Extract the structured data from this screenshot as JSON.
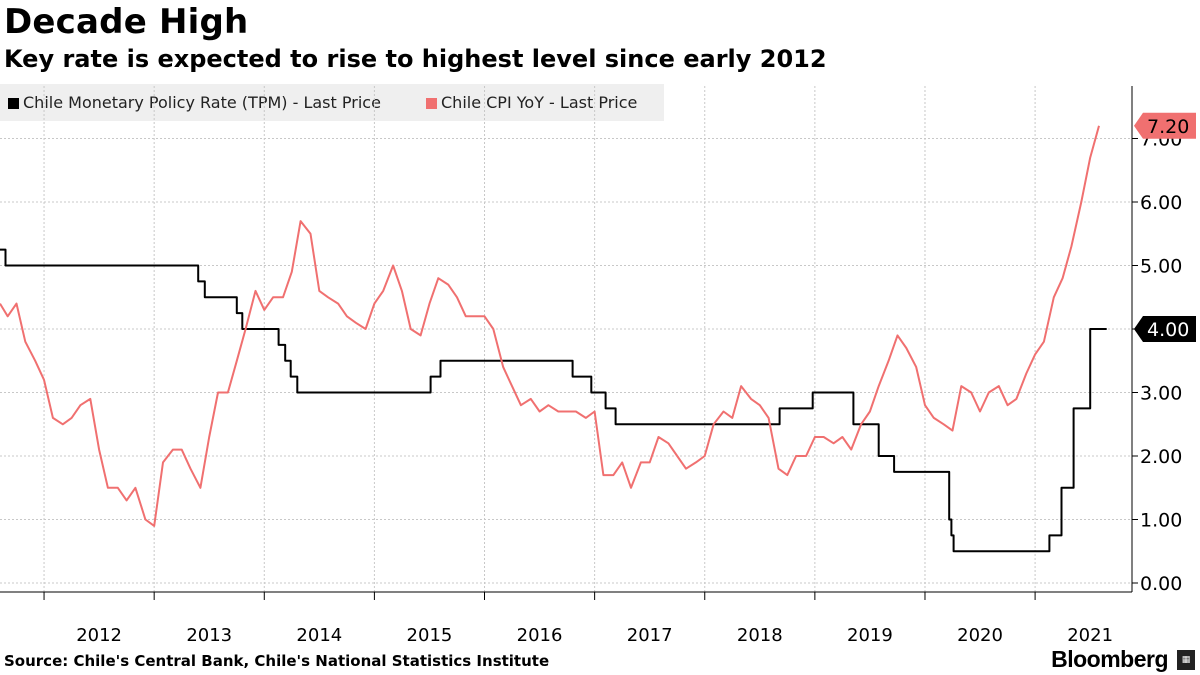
{
  "title": "Decade High",
  "subtitle": "Key rate is expected to rise to highest level since early 2012",
  "source": "Source: Chile's Central Bank, Chile's National Statistics Institute",
  "brand": "Bloomberg",
  "colors": {
    "tpm": "#000000",
    "cpi": "#f07070",
    "grid": "#c8c8c8",
    "legend_bg": "#efefef"
  },
  "chart_data": {
    "type": "line",
    "title": "Decade High",
    "subtitle": "Key rate is expected to rise to highest level since early 2012",
    "xlabel": "",
    "ylabel": "",
    "xlim": [
      2011.6,
      2021.88
    ],
    "ylim": [
      -0.1,
      8.0
    ],
    "y_ticks": [
      0,
      1,
      2,
      3,
      4,
      5,
      6,
      7
    ],
    "y_tick_labels": [
      "0.00",
      "1.00",
      "2.00",
      "3.00",
      "4.00",
      "5.00",
      "6.00",
      "7.00"
    ],
    "x_tick_labels": [
      "2012",
      "2013",
      "2014",
      "2015",
      "2016",
      "2017",
      "2018",
      "2019",
      "2020",
      "2021"
    ],
    "x_tick_positions": [
      2012.0,
      2013.0,
      2014.0,
      2015.0,
      2016.0,
      2017.0,
      2018.0,
      2019.0,
      2020.0,
      2021.0
    ],
    "grid": true,
    "legend_position": "top-left",
    "series": [
      {
        "name": "Chile Monetary Policy Rate (TPM) - Last Price",
        "step": true,
        "last_value_label": "4.00",
        "x": [
          2011.6,
          2011.65,
          2013.4,
          2013.46,
          2013.52,
          2013.75,
          2013.8,
          2014.13,
          2014.19,
          2014.24,
          2014.3,
          2015.3,
          2015.51,
          2015.6,
          2016.8,
          2016.97,
          2017.1,
          2017.14,
          2017.19,
          2018.4,
          2018.68,
          2018.98,
          2019.35,
          2019.58,
          2019.72,
          2020.22,
          2020.24,
          2020.26,
          2021.13,
          2021.24,
          2021.35,
          2021.5,
          2021.62,
          2021.65
        ],
        "values": [
          5.25,
          5.0,
          4.75,
          4.5,
          4.5,
          4.25,
          4.0,
          3.75,
          3.5,
          3.25,
          3.0,
          3.0,
          3.25,
          3.5,
          3.25,
          3.0,
          2.75,
          2.75,
          2.5,
          2.5,
          2.75,
          3.0,
          2.5,
          2.0,
          1.75,
          1.0,
          0.75,
          0.5,
          0.75,
          1.5,
          2.75,
          4.0,
          4.0,
          4.0
        ]
      },
      {
        "name": "Chile CPI YoY - Last Price",
        "step": false,
        "last_value_label": "7.20",
        "x": [
          2011.6,
          2011.67,
          2011.75,
          2011.83,
          2011.92,
          2012.0,
          2012.08,
          2012.17,
          2012.25,
          2012.33,
          2012.42,
          2012.5,
          2012.58,
          2012.67,
          2012.75,
          2012.83,
          2012.92,
          2013.0,
          2013.08,
          2013.17,
          2013.25,
          2013.33,
          2013.42,
          2013.5,
          2013.58,
          2013.67,
          2013.75,
          2013.83,
          2013.92,
          2014.0,
          2014.08,
          2014.17,
          2014.25,
          2014.33,
          2014.42,
          2014.5,
          2014.58,
          2014.67,
          2014.75,
          2014.83,
          2014.92,
          2015.0,
          2015.08,
          2015.17,
          2015.25,
          2015.33,
          2015.42,
          2015.5,
          2015.58,
          2015.67,
          2015.75,
          2015.83,
          2015.92,
          2016.0,
          2016.08,
          2016.17,
          2016.25,
          2016.33,
          2016.42,
          2016.5,
          2016.58,
          2016.67,
          2016.75,
          2016.83,
          2016.92,
          2017.0,
          2017.08,
          2017.17,
          2017.25,
          2017.33,
          2017.42,
          2017.5,
          2017.58,
          2017.67,
          2017.75,
          2017.83,
          2017.92,
          2018.0,
          2018.08,
          2018.17,
          2018.25,
          2018.33,
          2018.42,
          2018.5,
          2018.58,
          2018.67,
          2018.75,
          2018.83,
          2018.92,
          2019.0,
          2019.08,
          2019.17,
          2019.25,
          2019.33,
          2019.42,
          2019.5,
          2019.58,
          2019.67,
          2019.75,
          2019.83,
          2019.92,
          2020.0,
          2020.08,
          2020.17,
          2020.25,
          2020.33,
          2020.42,
          2020.5,
          2020.58,
          2020.67,
          2020.75,
          2020.83,
          2020.92,
          2021.0,
          2021.08,
          2021.17,
          2021.25,
          2021.33,
          2021.42,
          2021.5,
          2021.58
        ],
        "values": [
          4.4,
          4.2,
          4.4,
          3.8,
          3.5,
          3.2,
          2.6,
          2.5,
          2.6,
          2.8,
          2.9,
          2.1,
          1.5,
          1.5,
          1.3,
          1.5,
          1.0,
          0.9,
          1.9,
          2.1,
          2.1,
          1.8,
          1.5,
          2.3,
          3.0,
          3.0,
          3.5,
          4.0,
          4.6,
          4.3,
          4.5,
          4.5,
          4.9,
          5.7,
          5.5,
          4.6,
          4.5,
          4.4,
          4.2,
          4.1,
          4.0,
          4.4,
          4.6,
          5.0,
          4.6,
          4.0,
          3.9,
          4.4,
          4.8,
          4.7,
          4.5,
          4.2,
          4.2,
          4.2,
          4.0,
          3.4,
          3.1,
          2.8,
          2.9,
          2.7,
          2.8,
          2.7,
          2.7,
          2.7,
          2.6,
          2.7,
          1.7,
          1.7,
          1.9,
          1.5,
          1.9,
          1.9,
          2.3,
          2.2,
          2.0,
          1.8,
          1.9,
          2.0,
          2.5,
          2.7,
          2.6,
          3.1,
          2.9,
          2.8,
          2.6,
          1.8,
          1.7,
          2.0,
          2.0,
          2.3,
          2.3,
          2.2,
          2.3,
          2.1,
          2.5,
          2.7,
          3.1,
          3.5,
          3.9,
          3.7,
          3.4,
          2.8,
          2.6,
          2.5,
          2.4,
          3.1,
          3.0,
          2.7,
          3.0,
          3.1,
          2.8,
          2.9,
          3.3,
          3.6,
          3.8,
          4.5,
          4.8,
          5.3,
          6.0,
          6.7,
          7.2
        ]
      }
    ]
  }
}
